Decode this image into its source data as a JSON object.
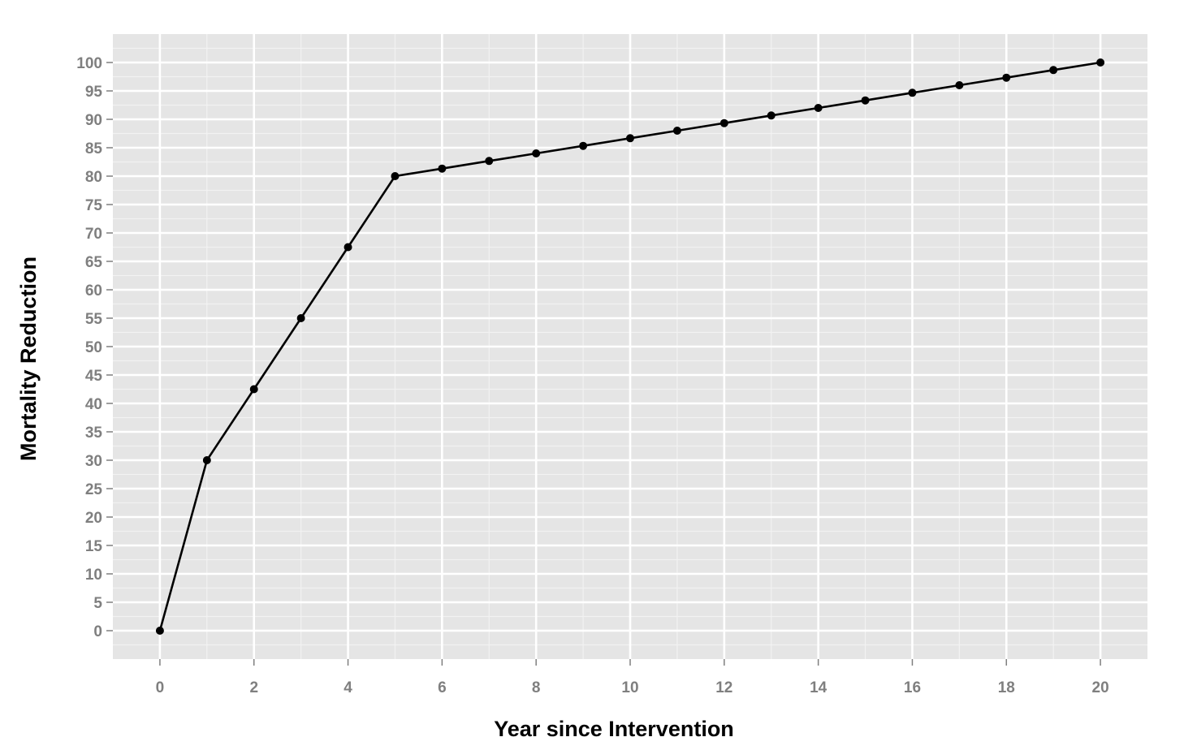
{
  "chart_data": {
    "type": "line",
    "title": "",
    "xlabel": "Year since Intervention",
    "ylabel": "Mortality Reduction",
    "xlim": [
      -1,
      21
    ],
    "ylim": [
      -5,
      105
    ],
    "x_ticks": [
      0,
      2,
      4,
      6,
      8,
      10,
      12,
      14,
      16,
      18,
      20
    ],
    "y_ticks": [
      0,
      5,
      10,
      15,
      20,
      25,
      30,
      35,
      40,
      45,
      50,
      55,
      60,
      65,
      70,
      75,
      80,
      85,
      90,
      95,
      100
    ],
    "grid": true,
    "legend": "none",
    "series": [
      {
        "x": [
          0,
          1,
          2,
          3,
          4,
          5,
          6,
          7,
          8,
          9,
          10,
          11,
          12,
          13,
          14,
          15,
          16,
          17,
          18,
          19,
          20
        ],
        "values": [
          0,
          30,
          42.5,
          55,
          67.5,
          80,
          81.33,
          82.67,
          84,
          85.33,
          86.67,
          88,
          89.33,
          90.67,
          92,
          93.33,
          94.67,
          96,
          97.33,
          98.67,
          100
        ]
      }
    ],
    "colors": {
      "panel_background": "#e5e5e5",
      "major_grid": "#ffffff",
      "minor_grid": "#f2f2f2",
      "line": "#000000",
      "point": "#000000",
      "tick_text": "#7f7f7f",
      "axis_title": "#000000"
    }
  }
}
